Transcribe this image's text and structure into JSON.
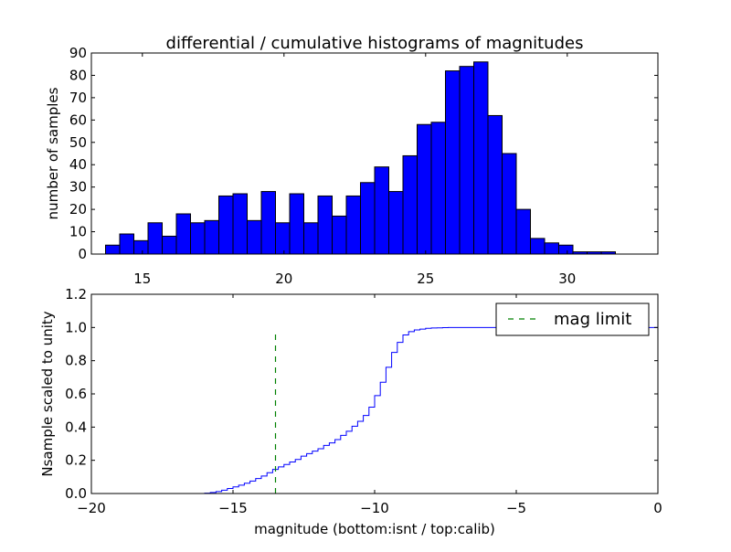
{
  "chart_data": [
    {
      "type": "bar",
      "title": "differential / cumulative histograms of magnitudes",
      "xlabel": "",
      "ylabel": "number of samples",
      "xlim": [
        13.2,
        33.2
      ],
      "ylim": [
        0,
        90
      ],
      "bin_width": 0.5,
      "bin_edges_start": 13.7,
      "values": [
        4,
        9,
        6,
        14,
        8,
        18,
        14,
        15,
        26,
        27,
        15,
        28,
        14,
        27,
        14,
        26,
        17,
        26,
        32,
        39,
        28,
        44,
        58,
        59,
        82,
        84,
        86,
        62,
        45,
        20,
        7,
        5,
        4,
        1,
        1,
        1
      ],
      "xticks": [
        "15",
        "20",
        "25",
        "30"
      ],
      "yticks": [
        "0",
        "10",
        "20",
        "30",
        "40",
        "50",
        "60",
        "70",
        "80",
        "90"
      ],
      "bar_color": "#0000ff"
    },
    {
      "type": "line",
      "xlabel": "magnitude (bottom:isnt / top:calib)",
      "ylabel": "Nsample scaled to unity",
      "xlim": [
        -20,
        0
      ],
      "ylim": [
        0,
        1.2
      ],
      "xticks": [
        "−20",
        "−15",
        "−10",
        "−5",
        "0"
      ],
      "yticks": [
        "0.0",
        "0.2",
        "0.4",
        "0.6",
        "0.8",
        "1.0",
        "1.2"
      ],
      "series": [
        {
          "name": "cumulative",
          "color": "#0000ff",
          "step": true,
          "x": [
            -20.0,
            -16.0,
            -15.8,
            -15.6,
            -15.4,
            -15.2,
            -15.0,
            -14.8,
            -14.6,
            -14.4,
            -14.2,
            -14.0,
            -13.8,
            -13.6,
            -13.4,
            -13.2,
            -13.0,
            -12.8,
            -12.6,
            -12.4,
            -12.2,
            -12.0,
            -11.8,
            -11.6,
            -11.4,
            -11.2,
            -11.0,
            -10.8,
            -10.6,
            -10.4,
            -10.2,
            -10.0,
            -9.8,
            -9.6,
            -9.4,
            -9.2,
            -9.0,
            -8.8,
            -8.6,
            -8.4,
            -8.2,
            -8.0,
            -7.8,
            -7.6,
            -7.4,
            -7.2,
            -7.0,
            -6.0,
            -5.0,
            -4.0,
            -3.0,
            -2.0,
            -1.0,
            -0.05
          ],
          "y": [
            0.0,
            0.002,
            0.006,
            0.012,
            0.02,
            0.03,
            0.04,
            0.05,
            0.062,
            0.075,
            0.09,
            0.105,
            0.125,
            0.145,
            0.16,
            0.175,
            0.19,
            0.205,
            0.225,
            0.24,
            0.255,
            0.27,
            0.29,
            0.305,
            0.325,
            0.35,
            0.375,
            0.405,
            0.435,
            0.47,
            0.52,
            0.59,
            0.67,
            0.76,
            0.85,
            0.91,
            0.955,
            0.975,
            0.985,
            0.99,
            0.995,
            0.997,
            0.998,
            0.999,
            1.0,
            1.0,
            1.0,
            1.0,
            1.0,
            1.0,
            1.0,
            1.0,
            1.0,
            1.0
          ]
        },
        {
          "name": "mag limit",
          "color": "#008000",
          "dashed": true,
          "x": [
            -13.5,
            -13.5
          ],
          "y": [
            0.0,
            0.96
          ]
        }
      ],
      "legend": {
        "label": "mag limit",
        "location": "top-right"
      }
    }
  ]
}
